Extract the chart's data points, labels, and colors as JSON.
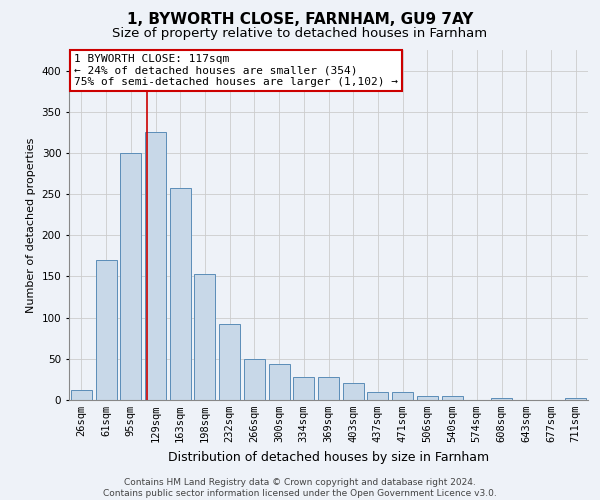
{
  "title": "1, BYWORTH CLOSE, FARNHAM, GU9 7AY",
  "subtitle": "Size of property relative to detached houses in Farnham",
  "xlabel": "Distribution of detached houses by size in Farnham",
  "ylabel": "Number of detached properties",
  "categories": [
    "26sqm",
    "61sqm",
    "95sqm",
    "129sqm",
    "163sqm",
    "198sqm",
    "232sqm",
    "266sqm",
    "300sqm",
    "334sqm",
    "369sqm",
    "403sqm",
    "437sqm",
    "471sqm",
    "506sqm",
    "540sqm",
    "574sqm",
    "608sqm",
    "643sqm",
    "677sqm",
    "711sqm"
  ],
  "values": [
    12,
    170,
    300,
    325,
    258,
    153,
    92,
    50,
    44,
    28,
    28,
    21,
    10,
    10,
    5,
    5,
    0,
    3,
    0,
    0,
    3
  ],
  "bar_color": "#c8d8e8",
  "bar_edge_color": "#5b8db8",
  "grid_color": "#cccccc",
  "background_color": "#eef2f8",
  "plot_bg_color": "#eef2f8",
  "annotation_box_color": "#cc0000",
  "property_line_color": "#cc0000",
  "property_sqm": 117,
  "property_label": "1 BYWORTH CLOSE: 117sqm",
  "annotation_line1": "← 24% of detached houses are smaller (354)",
  "annotation_line2": "75% of semi-detached houses are larger (1,102) →",
  "footer1": "Contains HM Land Registry data © Crown copyright and database right 2024.",
  "footer2": "Contains public sector information licensed under the Open Government Licence v3.0.",
  "ylim": [
    0,
    425
  ],
  "yticks": [
    0,
    50,
    100,
    150,
    200,
    250,
    300,
    350,
    400
  ],
  "title_fontsize": 11,
  "subtitle_fontsize": 9.5,
  "xlabel_fontsize": 9,
  "ylabel_fontsize": 8,
  "tick_fontsize": 7.5,
  "annotation_fontsize": 8,
  "footer_fontsize": 6.5
}
